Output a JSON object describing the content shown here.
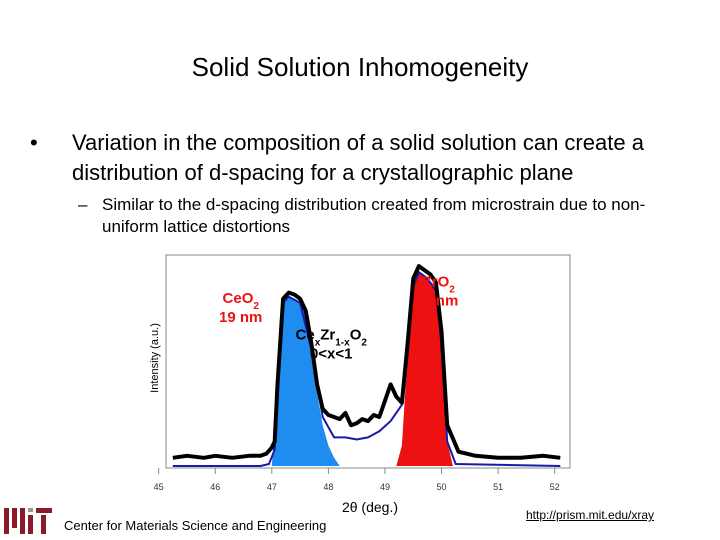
{
  "slide": {
    "title": "Solid Solution Inhomogeneity",
    "bullet_main": "Variation in the composition of a solid solution can create a distribution of d-spacing for a crystallographic plane",
    "bullet_sub": "Similar to the d-spacing distribution created from microstrain due to non-uniform lattice distortions",
    "bullet_glyph": "•",
    "sub_glyph": "–"
  },
  "footer": {
    "left": "Center for Materials Science and Engineering",
    "right": "http://prism.mit.edu/xray"
  },
  "colors": {
    "ceo2_fill": "#1f8cf0",
    "zro2_fill": "#ee1111",
    "curve": "#000000",
    "envelope": "#1a1aa8"
  },
  "chart_data": {
    "type": "line",
    "xlabel": "2θ (deg.)",
    "ylabel": "Intensity (a.u.)",
    "xlim": [
      45.2,
      52.2
    ],
    "ylim": [
      0,
      100
    ],
    "x_ticks": [
      "45",
      "46",
      "47",
      "48",
      "49",
      "50",
      "51",
      "52"
    ],
    "x_tick_values": [
      45,
      46,
      47,
      48,
      49,
      50,
      51,
      52
    ],
    "annotations": [
      {
        "base": "Ce",
        "parts": [
          [
            "Ce",
            ""
          ],
          [
            "O",
            ""
          ],
          [
            "2",
            "sub"
          ]
        ],
        "line2": "19 nm",
        "x": 46.45,
        "y": 80
      },
      {
        "parts": [
          [
            "Zr",
            ""
          ],
          [
            "O",
            ""
          ],
          [
            "2",
            "sub"
          ]
        ],
        "line2": "46nm",
        "x": 49.95,
        "y": 88
      },
      {
        "parts": [
          [
            "Ce",
            ""
          ],
          [
            "x",
            "sub"
          ],
          [
            "Zr",
            ""
          ],
          [
            "1-x",
            "sub"
          ],
          [
            "O",
            ""
          ],
          [
            "2",
            "sub"
          ]
        ],
        "line2": "0<x<1",
        "x": 48.05,
        "y": 62
      }
    ],
    "series": [
      {
        "x": [
          45.25,
          45.5,
          45.8,
          46.0,
          46.3,
          46.6,
          46.8,
          46.9,
          47.0,
          47.05,
          47.1,
          47.2,
          47.3,
          47.4,
          47.5,
          47.6,
          47.7,
          47.8,
          47.9,
          48.0,
          48.1,
          48.2,
          48.3,
          48.4,
          48.5,
          48.6,
          48.7,
          48.8,
          48.9,
          49.0,
          49.1,
          49.2,
          49.3,
          49.4,
          49.5,
          49.6,
          49.7,
          49.8,
          49.9,
          50.0,
          50.1,
          50.3,
          50.6,
          51.0,
          51.4,
          51.8,
          52.1
        ],
        "y": [
          4,
          5,
          4,
          5,
          4,
          5,
          5,
          6,
          9,
          12,
          40,
          82,
          85,
          84,
          82,
          76,
          60,
          40,
          28,
          25,
          24,
          23,
          26,
          20,
          21,
          23,
          22,
          25,
          24,
          32,
          40,
          34,
          31,
          60,
          92,
          98,
          96,
          94,
          90,
          66,
          20,
          7,
          5,
          4,
          4,
          5,
          4
        ]
      }
    ],
    "filled_peaks": [
      {
        "name": "",
        "color": "#1f8cf0",
        "x": [
          47.0,
          47.1,
          47.2,
          47.3,
          47.4,
          47.5,
          47.6,
          47.7,
          47.8,
          47.9,
          48.0,
          48.1,
          48.2
        ],
        "y": [
          0,
          40,
          80,
          83,
          82,
          80,
          74,
          56,
          36,
          20,
          10,
          4,
          0
        ]
      },
      {
        "name": "",
        "color": "#ee1111",
        "x": [
          49.2,
          49.3,
          49.4,
          49.5,
          49.6,
          49.7,
          49.8,
          49.9,
          50.0,
          50.1,
          50.2
        ],
        "y": [
          0,
          10,
          55,
          88,
          95,
          93,
          90,
          86,
          60,
          12,
          0
        ]
      }
    ],
    "envelope": {
      "x": [
        45.25,
        46.8,
        46.95,
        47.05,
        47.1,
        47.2,
        47.3,
        47.5,
        47.7,
        47.9,
        48.1,
        48.3,
        48.5,
        48.7,
        48.9,
        49.1,
        49.3,
        49.4,
        49.5,
        49.6,
        49.7,
        49.8,
        49.9,
        50.0,
        50.1,
        50.25,
        52.1
      ],
      "y": [
        0,
        0,
        1,
        8,
        38,
        80,
        83,
        80,
        57,
        24,
        14,
        14,
        13,
        14,
        17,
        22,
        30,
        55,
        88,
        95,
        93,
        90,
        86,
        60,
        12,
        1,
        0
      ]
    }
  }
}
